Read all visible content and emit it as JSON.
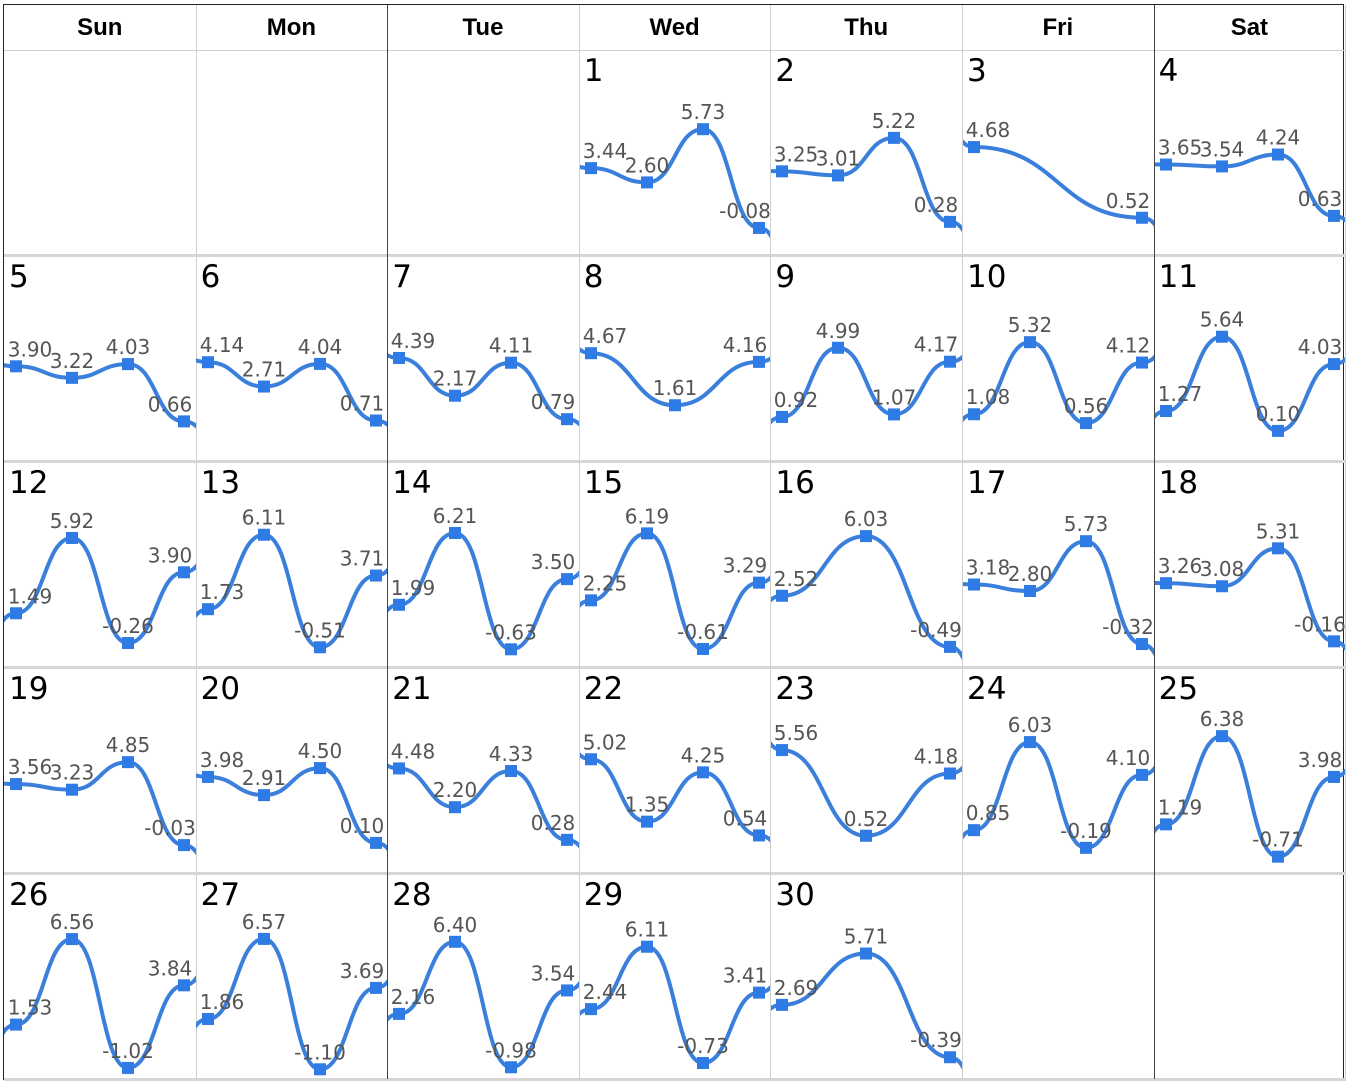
{
  "chart_data": {
    "type": "line",
    "weekdays": [
      "Sun",
      "Mon",
      "Tue",
      "Wed",
      "Thu",
      "Fri",
      "Sat"
    ],
    "first_weekday_index": 3,
    "days_in_month": 30,
    "series_color": "#3a7fdc",
    "marker_color": "#2f7be5",
    "days": [
      {
        "day": 1,
        "points": [
          3.44,
          2.6,
          5.73,
          -0.08
        ]
      },
      {
        "day": 2,
        "points": [
          3.25,
          3.01,
          5.22,
          0.28
        ]
      },
      {
        "day": 3,
        "points": [
          4.68,
          0.52
        ]
      },
      {
        "day": 4,
        "points": [
          3.65,
          3.54,
          4.24,
          0.63
        ]
      },
      {
        "day": 5,
        "points": [
          3.9,
          3.22,
          4.03,
          0.66
        ]
      },
      {
        "day": 6,
        "points": [
          4.14,
          2.71,
          4.04,
          0.71
        ]
      },
      {
        "day": 7,
        "points": [
          4.39,
          2.17,
          4.11,
          0.79
        ]
      },
      {
        "day": 8,
        "points": [
          4.67,
          1.61,
          4.16
        ]
      },
      {
        "day": 9,
        "points": [
          0.92,
          4.99,
          1.07,
          4.17
        ]
      },
      {
        "day": 10,
        "points": [
          1.08,
          5.32,
          0.56,
          4.12
        ]
      },
      {
        "day": 11,
        "points": [
          1.27,
          5.64,
          0.1,
          4.03
        ]
      },
      {
        "day": 12,
        "points": [
          1.49,
          5.92,
          -0.26,
          3.9
        ]
      },
      {
        "day": 13,
        "points": [
          1.73,
          6.11,
          -0.51,
          3.71
        ]
      },
      {
        "day": 14,
        "points": [
          1.99,
          6.21,
          -0.63,
          3.5
        ]
      },
      {
        "day": 15,
        "points": [
          2.25,
          6.19,
          -0.61,
          3.29
        ]
      },
      {
        "day": 16,
        "points": [
          2.52,
          6.03,
          -0.49
        ]
      },
      {
        "day": 17,
        "points": [
          3.18,
          2.8,
          5.73,
          -0.32
        ]
      },
      {
        "day": 18,
        "points": [
          3.26,
          3.08,
          5.31,
          -0.16
        ]
      },
      {
        "day": 19,
        "points": [
          3.56,
          3.23,
          4.85,
          -0.03
        ]
      },
      {
        "day": 20,
        "points": [
          3.98,
          2.91,
          4.5,
          0.1
        ]
      },
      {
        "day": 21,
        "points": [
          4.48,
          2.2,
          4.33,
          0.28
        ]
      },
      {
        "day": 22,
        "points": [
          5.02,
          1.35,
          4.25,
          0.54
        ]
      },
      {
        "day": 23,
        "points": [
          5.56,
          0.52,
          4.18
        ]
      },
      {
        "day": 24,
        "points": [
          0.85,
          6.03,
          -0.19,
          4.1
        ]
      },
      {
        "day": 25,
        "points": [
          1.19,
          6.38,
          -0.71,
          3.98
        ]
      },
      {
        "day": 26,
        "points": [
          1.53,
          6.56,
          -1.02,
          3.84
        ]
      },
      {
        "day": 27,
        "points": [
          1.86,
          6.57,
          -1.1,
          3.69
        ]
      },
      {
        "day": 28,
        "points": [
          2.16,
          6.4,
          -0.98,
          3.54
        ]
      },
      {
        "day": 29,
        "points": [
          2.44,
          6.11,
          -0.73,
          3.41
        ]
      },
      {
        "day": 30,
        "points": [
          2.69,
          5.71,
          -0.39
        ]
      }
    ]
  }
}
